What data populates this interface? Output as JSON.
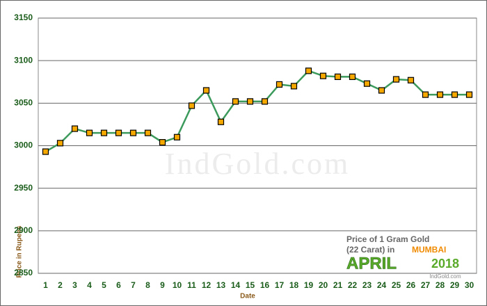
{
  "chart_data": {
    "type": "line",
    "categories": [
      "1",
      "2",
      "3",
      "4",
      "5",
      "6",
      "7",
      "8",
      "9",
      "10",
      "11",
      "12",
      "13",
      "14",
      "15",
      "16",
      "17",
      "18",
      "19",
      "20",
      "21",
      "22",
      "23",
      "24",
      "25",
      "26",
      "27",
      "28",
      "29",
      "30"
    ],
    "series": [
      {
        "color": "#3c9a5c",
        "marker_color": "#f5a800",
        "values": [
          2993,
          3003,
          3020,
          3015,
          3015,
          3015,
          3015,
          3015,
          3004,
          3010,
          3047,
          3065,
          3028,
          3052,
          3052,
          3052,
          3072,
          3070,
          3088,
          3082,
          3081,
          3081,
          3073,
          3065,
          3078,
          3077,
          3060,
          3060,
          3060,
          3060
        ]
      }
    ],
    "ylim": [
      2850,
      3150
    ],
    "yticks": [
      2850,
      2900,
      2950,
      3000,
      3050,
      3100,
      3150
    ],
    "grid": true,
    "xlabel": "Date",
    "ylabel": "Price in Rupees",
    "watermark": "IndGold.com",
    "annotation": {
      "line1": "Price of 1 Gram Gold",
      "line2": "(22 Carat) in",
      "city": "MUMBAI",
      "month": "APRIL",
      "year": "2018",
      "source": "IndGold.com"
    }
  }
}
